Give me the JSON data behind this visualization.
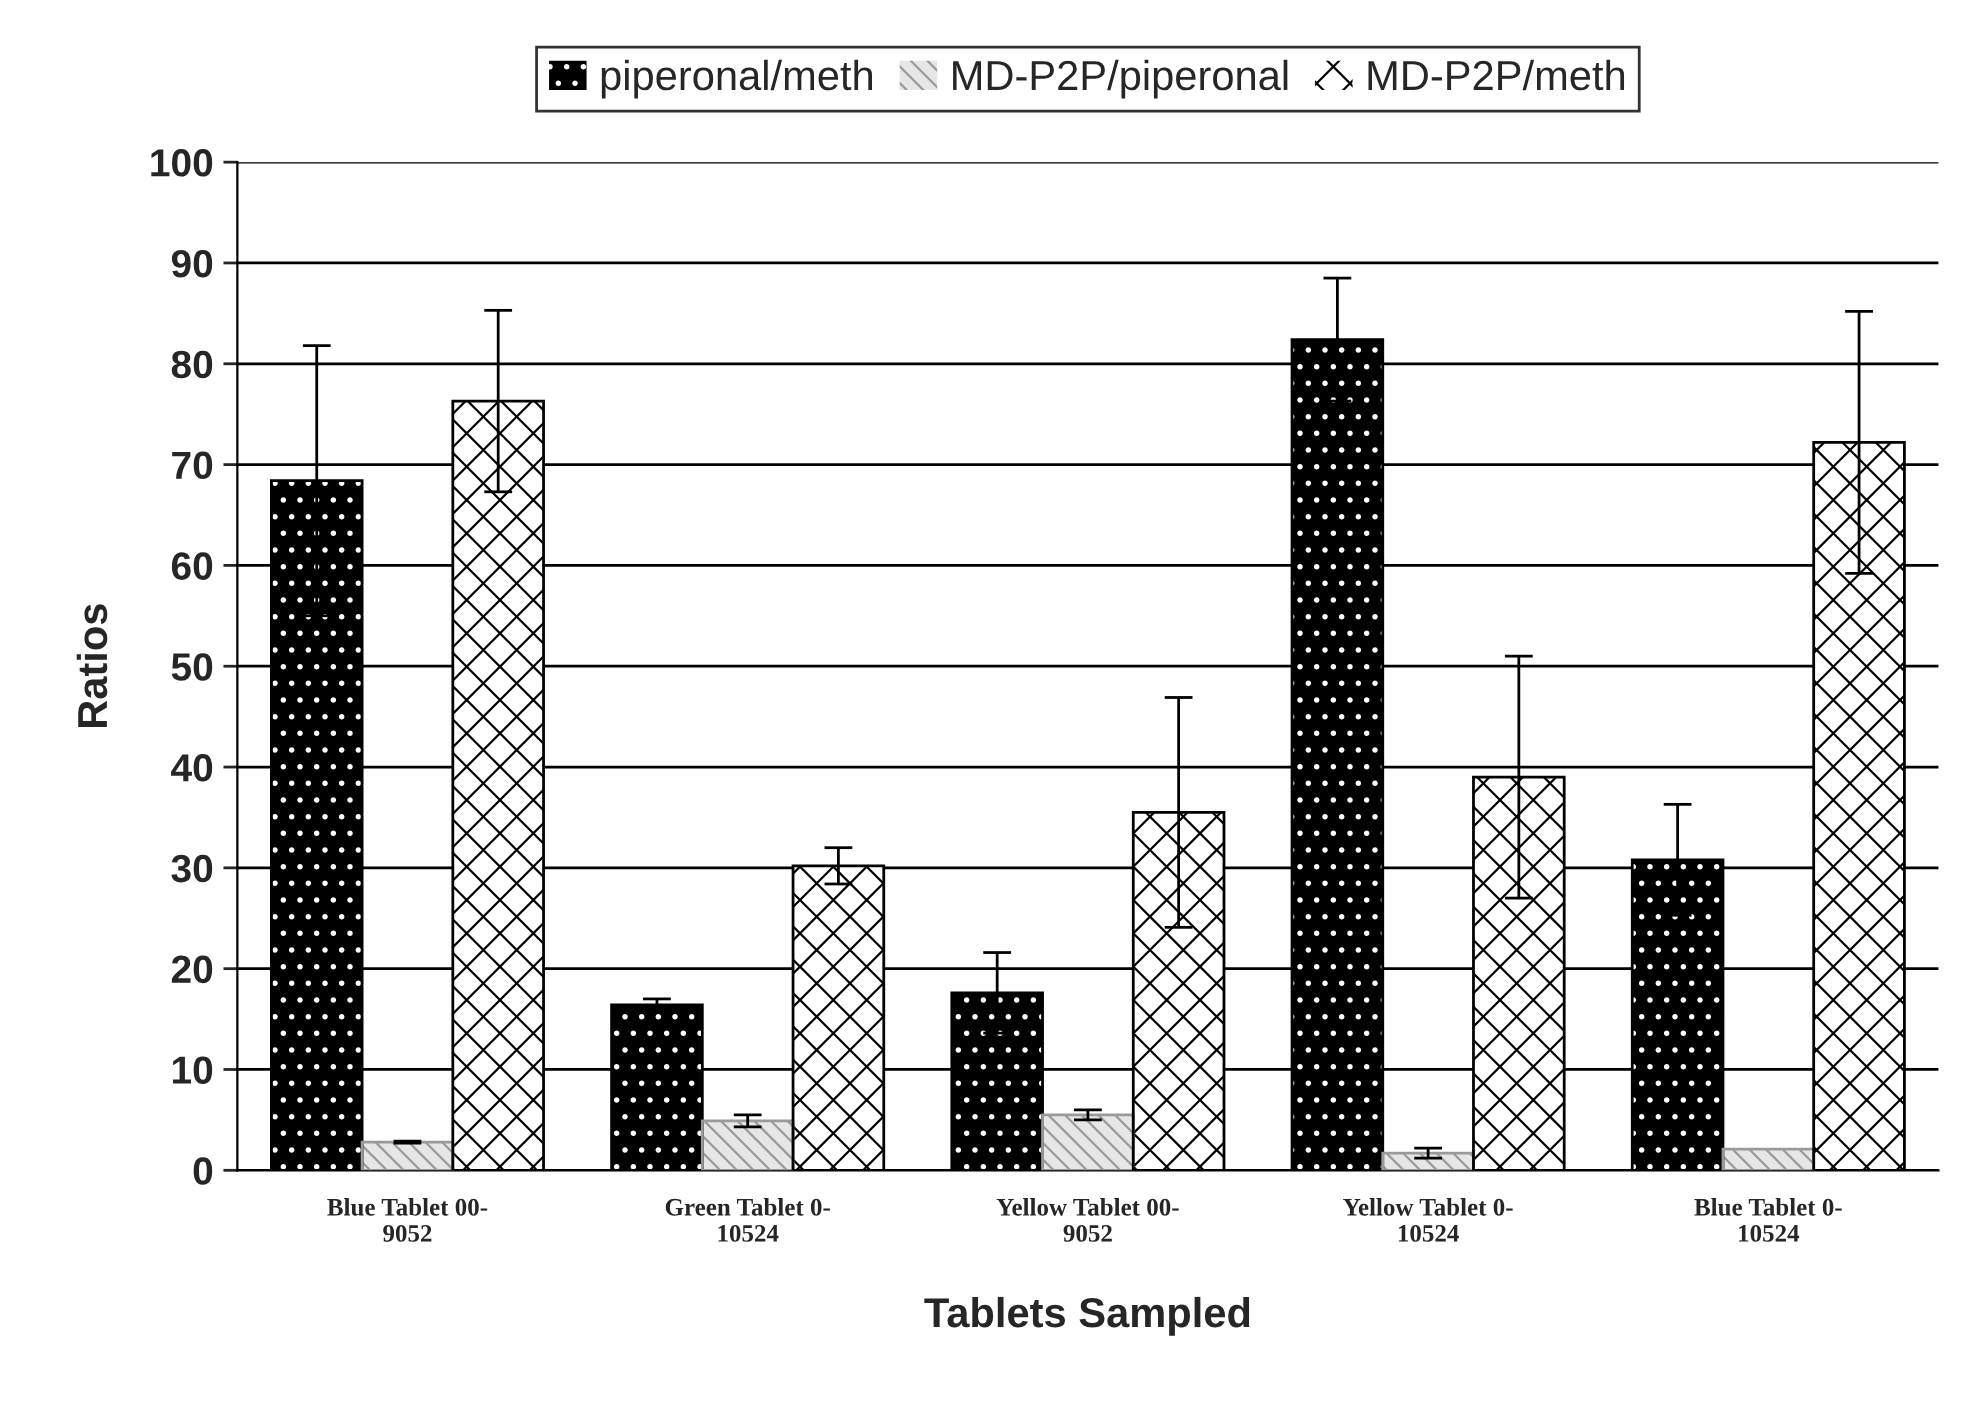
{
  "chart_data": {
    "type": "bar",
    "xlabel": "Tablets Sampled",
    "ylabel": "Ratios",
    "categories": [
      "Blue Tablet 00-\n9052",
      "Green Tablet 0-\n10524",
      "Yellow Tablet 00-\n9052",
      "Yellow Tablet 0-\n10524",
      "Blue Tablet 0-\n10524"
    ],
    "series": [
      {
        "name": "piperonal/meth",
        "color": "#000000",
        "values": [
          68.4,
          16.4,
          17.6,
          82.4,
          30.8
        ],
        "errors": [
          13.4,
          0.6,
          4,
          6.1,
          5.5
        ]
      },
      {
        "name": "MD-P2P/piperonal",
        "color": "#e6e6e6",
        "values": [
          2.8,
          4.9,
          5.5,
          1.7,
          2.1
        ],
        "errors": [
          0.1,
          0.6,
          0.5,
          0.5,
          null
        ]
      },
      {
        "name": "MD-P2P/meth",
        "color": "#ffffff",
        "values": [
          76.3,
          30.2,
          35.5,
          39,
          72.2
        ],
        "errors": [
          9,
          1.8,
          11.4,
          12,
          13
        ]
      }
    ],
    "ylim": [
      0,
      100
    ],
    "yticks": [
      0,
      10,
      20,
      30,
      40,
      50,
      60,
      70,
      80,
      90,
      100
    ],
    "grid": "y",
    "legend": "top"
  }
}
